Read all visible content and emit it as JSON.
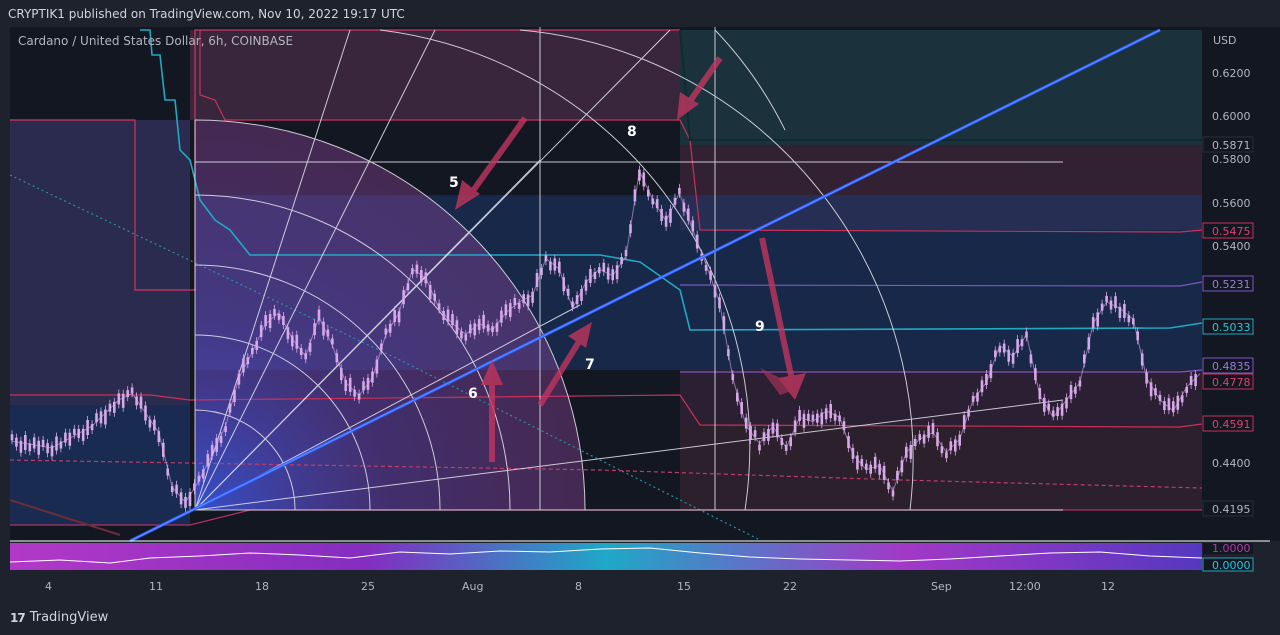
{
  "header": {
    "published": "CRYPTIK1 published on TradingView.com, Nov 10, 2022 19:17 UTC"
  },
  "brand": {
    "logo_icon": "tradingview-logo-icon",
    "name": "TradingView"
  },
  "colors": {
    "background": "#131722",
    "trendline": "#2962ff",
    "arrow": "#c0365f",
    "candle": "#d6a8e8",
    "baseline": "#26a6b9",
    "upper_band": "#e0406d",
    "purple_band": "#7e57c2"
  },
  "chart_data": {
    "type": "candlestick",
    "title": "Cardano / United States Dollar, 6h, COINBASE",
    "currency_label": "USD",
    "y_ticks": [
      "0.6200",
      "0.6000",
      "0.5800",
      "0.5600",
      "0.5400",
      "0.4400"
    ],
    "x_ticks": [
      "4",
      "11",
      "18",
      "25",
      "Aug",
      "8",
      "15",
      "22",
      "Sep",
      "12:00",
      "12"
    ],
    "price_labels": [
      {
        "value": "0.5871",
        "role": "upper-band"
      },
      {
        "value": "0.5475",
        "role": "red-band"
      },
      {
        "value": "0.5231",
        "role": "purple-band"
      },
      {
        "value": "0.5033",
        "role": "baseline"
      },
      {
        "value": "0.4835",
        "role": "purple-band-low"
      },
      {
        "value": "0.4778",
        "role": "red-band-low"
      },
      {
        "value": "0.4591",
        "role": "lower-red"
      },
      {
        "value": "0.4195",
        "role": "lower-band"
      }
    ],
    "annotations": [
      "5",
      "6",
      "7",
      "8",
      "9"
    ],
    "price_series": [
      {
        "t": 0,
        "p": 0.451
      },
      {
        "t": 3,
        "p": 0.448
      },
      {
        "t": 6,
        "p": 0.458
      },
      {
        "t": 8,
        "p": 0.47
      },
      {
        "t": 9,
        "p": 0.473
      },
      {
        "t": 11,
        "p": 0.455
      },
      {
        "t": 12,
        "p": 0.43
      },
      {
        "t": 13,
        "p": 0.423
      },
      {
        "t": 14,
        "p": 0.433
      },
      {
        "t": 15,
        "p": 0.445
      },
      {
        "t": 16,
        "p": 0.458
      },
      {
        "t": 17,
        "p": 0.48
      },
      {
        "t": 18,
        "p": 0.492
      },
      {
        "t": 19,
        "p": 0.505
      },
      {
        "t": 20,
        "p": 0.51
      },
      {
        "t": 21,
        "p": 0.498
      },
      {
        "t": 22,
        "p": 0.49
      },
      {
        "t": 23,
        "p": 0.508
      },
      {
        "t": 24,
        "p": 0.495
      },
      {
        "t": 25,
        "p": 0.478
      },
      {
        "t": 26,
        "p": 0.472
      },
      {
        "t": 27,
        "p": 0.48
      },
      {
        "t": 28,
        "p": 0.5
      },
      {
        "t": 29,
        "p": 0.51
      },
      {
        "t": 30,
        "p": 0.53
      },
      {
        "t": 31,
        "p": 0.526
      },
      {
        "t": 32,
        "p": 0.512
      },
      {
        "t": 33,
        "p": 0.505
      },
      {
        "t": 34,
        "p": 0.5
      },
      {
        "t": 35,
        "p": 0.505
      },
      {
        "t": 36,
        "p": 0.502
      },
      {
        "t": 37,
        "p": 0.51
      },
      {
        "t": 38,
        "p": 0.515
      },
      {
        "t": 39,
        "p": 0.518
      },
      {
        "t": 40,
        "p": 0.535
      },
      {
        "t": 41,
        "p": 0.53
      },
      {
        "t": 42,
        "p": 0.512
      },
      {
        "t": 43,
        "p": 0.524
      },
      {
        "t": 44,
        "p": 0.53
      },
      {
        "t": 45,
        "p": 0.527
      },
      {
        "t": 46,
        "p": 0.536
      },
      {
        "t": 47,
        "p": 0.575
      },
      {
        "t": 48,
        "p": 0.562
      },
      {
        "t": 49,
        "p": 0.552
      },
      {
        "t": 50,
        "p": 0.565
      },
      {
        "t": 51,
        "p": 0.548
      },
      {
        "t": 52,
        "p": 0.532
      },
      {
        "t": 53,
        "p": 0.515
      },
      {
        "t": 54,
        "p": 0.48
      },
      {
        "t": 55,
        "p": 0.458
      },
      {
        "t": 56,
        "p": 0.45
      },
      {
        "t": 57,
        "p": 0.458
      },
      {
        "t": 58,
        "p": 0.448
      },
      {
        "t": 59,
        "p": 0.462
      },
      {
        "t": 60,
        "p": 0.46
      },
      {
        "t": 61,
        "p": 0.465
      },
      {
        "t": 62,
        "p": 0.462
      },
      {
        "t": 63,
        "p": 0.445
      },
      {
        "t": 64,
        "p": 0.438
      },
      {
        "t": 65,
        "p": 0.44
      },
      {
        "t": 66,
        "p": 0.428
      },
      {
        "t": 67,
        "p": 0.446
      },
      {
        "t": 68,
        "p": 0.452
      },
      {
        "t": 69,
        "p": 0.455
      },
      {
        "t": 70,
        "p": 0.446
      },
      {
        "t": 71,
        "p": 0.452
      },
      {
        "t": 72,
        "p": 0.47
      },
      {
        "t": 73,
        "p": 0.478
      },
      {
        "t": 74,
        "p": 0.495
      },
      {
        "t": 75,
        "p": 0.49
      },
      {
        "t": 76,
        "p": 0.5
      },
      {
        "t": 77,
        "p": 0.472
      },
      {
        "t": 78,
        "p": 0.462
      },
      {
        "t": 79,
        "p": 0.47
      },
      {
        "t": 80,
        "p": 0.478
      },
      {
        "t": 81,
        "p": 0.505
      },
      {
        "t": 82,
        "p": 0.515
      },
      {
        "t": 83,
        "p": 0.512
      },
      {
        "t": 84,
        "p": 0.507
      },
      {
        "t": 85,
        "p": 0.48
      },
      {
        "t": 86,
        "p": 0.47
      },
      {
        "t": 87,
        "p": 0.465
      },
      {
        "t": 88,
        "p": 0.476
      },
      {
        "t": 89,
        "p": 0.482
      }
    ]
  }
}
